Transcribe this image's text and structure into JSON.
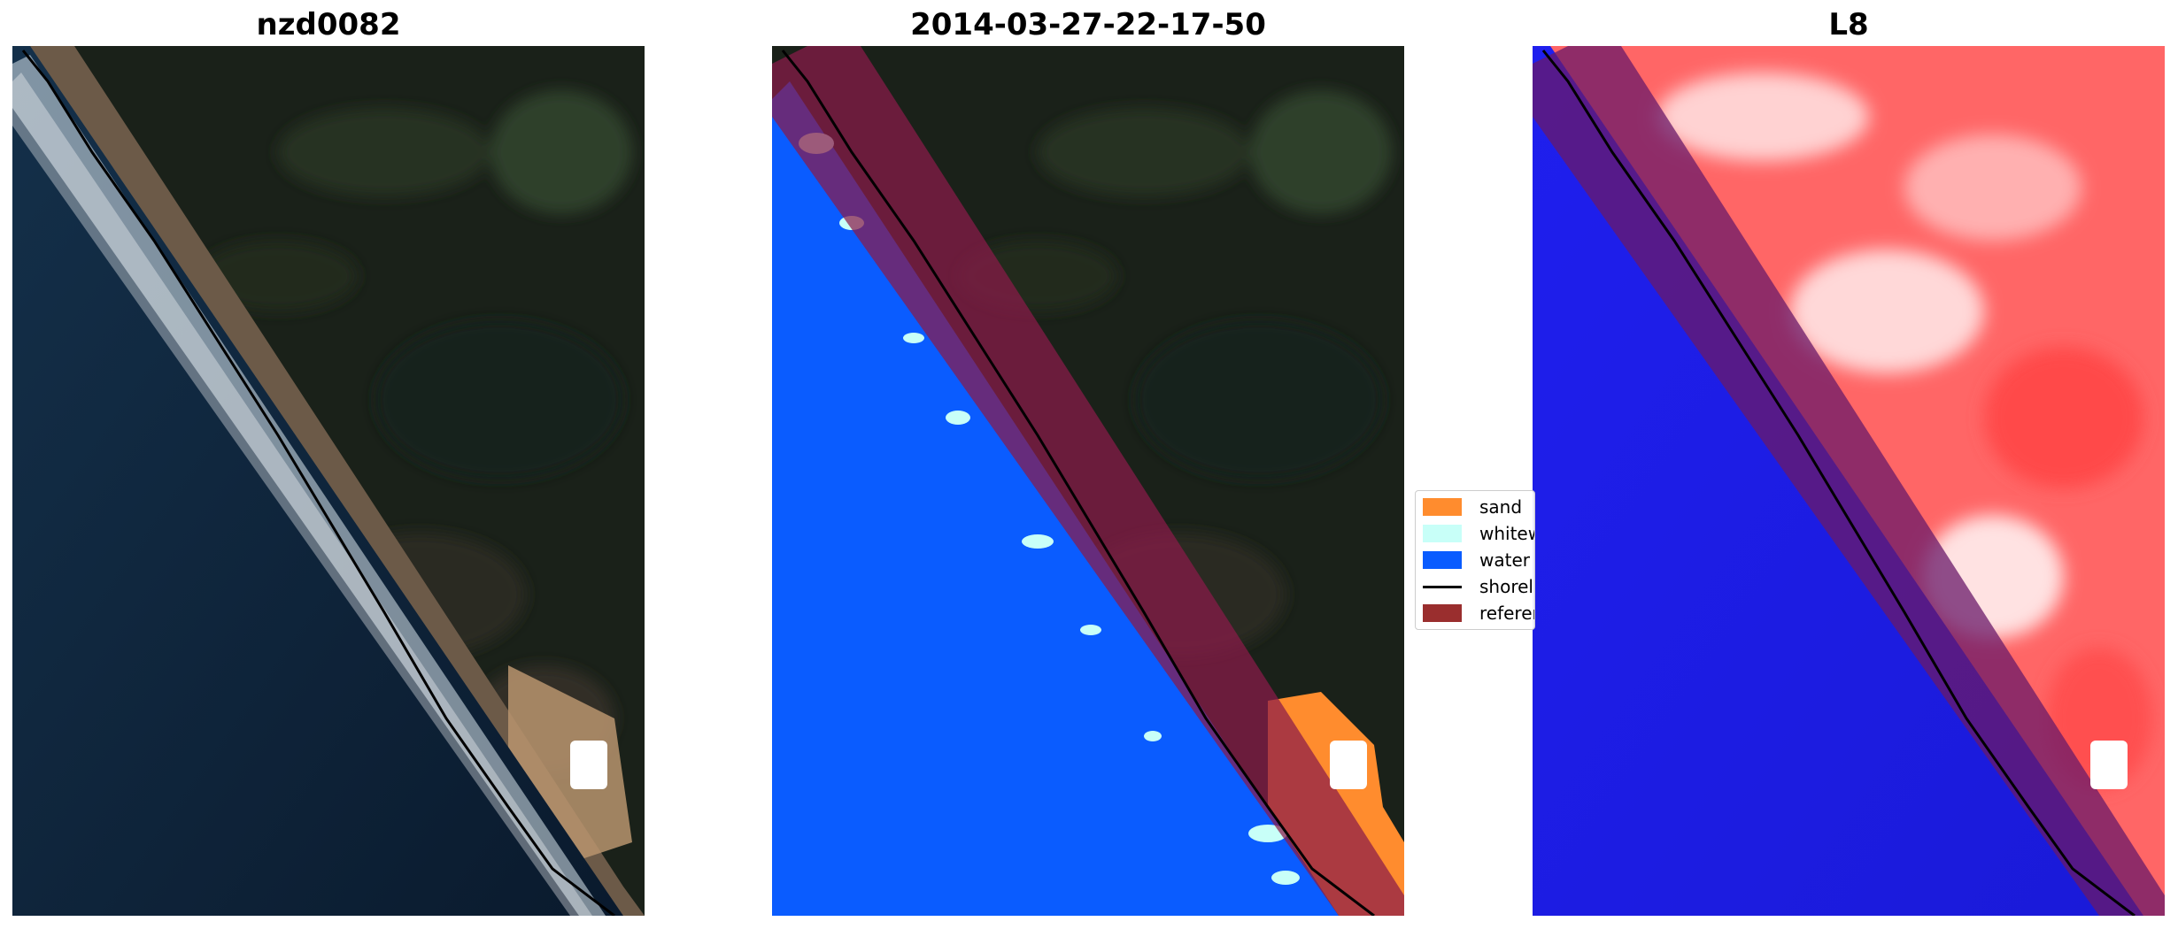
{
  "panels": [
    {
      "title": "nzd0082",
      "content": "RGB satellite image with detected shoreline"
    },
    {
      "title": "2014-03-27-22-17-50",
      "content": "Classified image overlay"
    },
    {
      "title": "L8",
      "content": "Water index image with shoreline"
    }
  ],
  "legend": {
    "items": [
      {
        "label": "sand",
        "color": "#ff8c2e"
      },
      {
        "label": "whitew",
        "color": "#c8fff8"
      },
      {
        "label": "water",
        "color": "#0a5cff"
      },
      {
        "label": "shorel",
        "color": "#000000"
      },
      {
        "label": "referen",
        "color": "#9a2e2e"
      }
    ]
  },
  "colors": {
    "land_dark": "#1a2119",
    "ocean_dark": "#0d1f33",
    "sand": "#c9a27a",
    "surf": "#dbe7ee",
    "class_water": "#0a5cff",
    "class_sand": "#ff8c2e",
    "class_whitewater": "#c8fff8",
    "reference_buffer": "#8b1a4a",
    "index_land": "#ff6666",
    "index_water": "#1a1aee",
    "shoreline": "#000000"
  }
}
